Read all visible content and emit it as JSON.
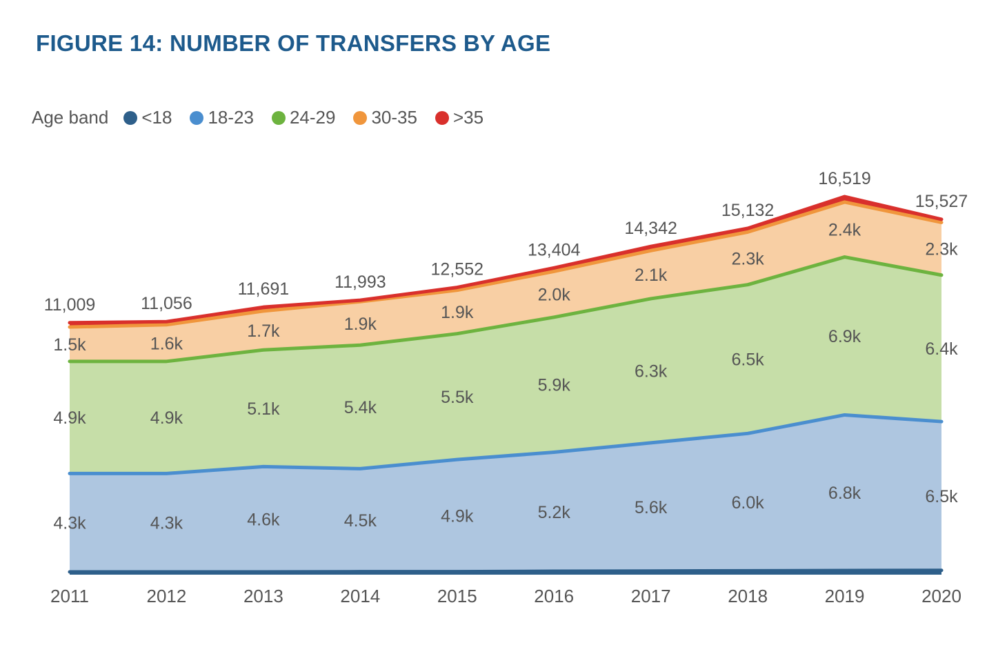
{
  "chart_data": {
    "type": "area",
    "stacked": true,
    "title": "FIGURE 14: NUMBER OF TRANSFERS BY AGE",
    "legend_title": "Age band",
    "legend_position": "top-left",
    "xlabel": "",
    "ylabel": "",
    "grid": false,
    "categories": [
      "2011",
      "2012",
      "2013",
      "2014",
      "2015",
      "2016",
      "2017",
      "2018",
      "2019",
      "2020"
    ],
    "totals": [
      11009,
      11056,
      11691,
      11993,
      12552,
      13404,
      14342,
      15132,
      16519,
      15527
    ],
    "total_labels": [
      "11,009",
      "11,056",
      "11,691",
      "11,993",
      "12,552",
      "13,404",
      "14,342",
      "15,132",
      "16,519",
      "15,527"
    ],
    "series": [
      {
        "name": "<18",
        "color": "#2e5f8a",
        "values": [
          120,
          120,
          120,
          130,
          130,
          150,
          160,
          170,
          180,
          190
        ],
        "labels": []
      },
      {
        "name": "18-23",
        "color": "#4a8ecf",
        "fill": "#aec6e0",
        "values": [
          4300,
          4300,
          4600,
          4500,
          4900,
          5200,
          5600,
          6000,
          6800,
          6500
        ],
        "labels": [
          "4.3k",
          "4.3k",
          "4.6k",
          "4.5k",
          "4.9k",
          "5.2k",
          "5.6k",
          "6.0k",
          "6.8k",
          "6.5k"
        ]
      },
      {
        "name": "24-29",
        "color": "#6db33f",
        "fill": "#c6dea8",
        "values": [
          4900,
          4900,
          5100,
          5400,
          5500,
          5900,
          6300,
          6500,
          6900,
          6400
        ],
        "labels": [
          "4.9k",
          "4.9k",
          "5.1k",
          "5.4k",
          "5.5k",
          "5.9k",
          "6.3k",
          "6.5k",
          "6.9k",
          "6.4k"
        ]
      },
      {
        "name": "30-35",
        "color": "#f0963c",
        "fill": "#f8cfa4",
        "values": [
          1500,
          1600,
          1700,
          1900,
          1900,
          2000,
          2100,
          2300,
          2400,
          2300
        ],
        "labels": [
          "1.5k",
          "1.6k",
          "1.7k",
          "1.9k",
          "1.9k",
          "2.0k",
          "2.1k",
          "2.3k",
          "2.4k",
          "2.3k"
        ]
      },
      {
        "name": ">35",
        "color": "#d9302c",
        "values": [
          189,
          136,
          171,
          63,
          122,
          154,
          182,
          162,
          239,
          137
        ],
        "labels": []
      }
    ],
    "ylim": [
      0,
      16519
    ]
  }
}
